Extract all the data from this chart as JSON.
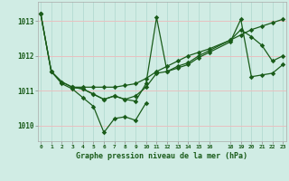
{
  "title": "Graphe pression niveau de la mer (hPa)",
  "bg_color": "#d0ece4",
  "vgrid_color": "#b8ddd4",
  "hgrid_color": "#e8c0c0",
  "line_color": "#1a5c1a",
  "xlim": [
    -0.3,
    23.3
  ],
  "ylim": [
    1009.55,
    1013.55
  ],
  "yticks": [
    1010,
    1011,
    1012,
    1013
  ],
  "xticks": [
    0,
    1,
    2,
    3,
    4,
    5,
    6,
    7,
    8,
    9,
    10,
    11,
    12,
    13,
    14,
    15,
    16,
    18,
    19,
    20,
    21,
    22,
    23
  ],
  "series": [
    {
      "x": [
        0,
        1,
        2,
        3,
        4,
        5,
        6,
        7,
        8,
        9,
        10
      ],
      "y": [
        1013.2,
        1011.55,
        1011.2,
        1011.05,
        1010.8,
        1010.55,
        1009.8,
        1010.2,
        1010.25,
        1010.15,
        1010.65
      ]
    },
    {
      "x": [
        0,
        1,
        2,
        3,
        4,
        5,
        6,
        7,
        8,
        9,
        10,
        11,
        12,
        13,
        14,
        15,
        16,
        18,
        19,
        20,
        21,
        22,
        23
      ],
      "y": [
        1013.2,
        1011.55,
        1011.25,
        1011.1,
        1011.05,
        1010.9,
        1010.75,
        1010.85,
        1010.75,
        1010.85,
        1011.1,
        1011.5,
        1011.55,
        1011.7,
        1011.8,
        1012.0,
        1012.15,
        1012.45,
        1012.75,
        1012.55,
        1012.3,
        1011.85,
        1012.0
      ]
    },
    {
      "x": [
        0,
        1,
        2,
        3,
        4,
        5,
        6,
        7,
        8,
        9,
        10,
        11,
        12,
        13,
        14,
        15,
        16,
        18,
        19,
        20,
        21,
        22,
        23
      ],
      "y": [
        1013.2,
        1011.55,
        1011.25,
        1011.1,
        1011.05,
        1010.9,
        1010.75,
        1010.85,
        1010.75,
        1010.7,
        1011.2,
        1013.1,
        1011.55,
        1011.65,
        1011.75,
        1011.95,
        1012.1,
        1012.4,
        1013.05,
        1011.4,
        1011.45,
        1011.5,
        1011.75
      ]
    },
    {
      "x": [
        3,
        4,
        5,
        6,
        7,
        8,
        9,
        10,
        11,
        12,
        13,
        14,
        15,
        16,
        18,
        19,
        20,
        21,
        22,
        23
      ],
      "y": [
        1011.1,
        1011.1,
        1011.1,
        1011.1,
        1011.1,
        1011.15,
        1011.2,
        1011.35,
        1011.55,
        1011.7,
        1011.85,
        1012.0,
        1012.1,
        1012.2,
        1012.45,
        1012.6,
        1012.75,
        1012.85,
        1012.95,
        1013.05
      ]
    }
  ]
}
